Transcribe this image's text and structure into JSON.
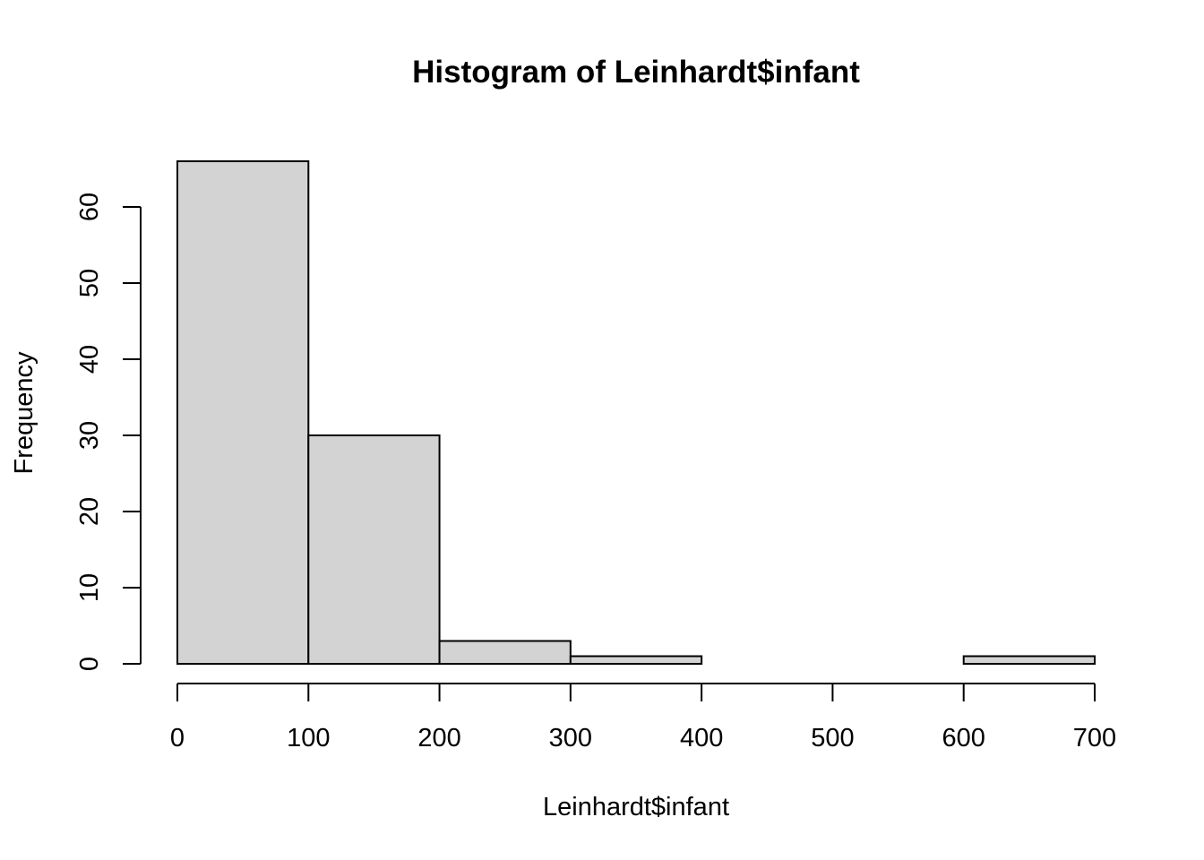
{
  "chart_data": {
    "type": "bar",
    "title": "Histogram of Leinhardt$infant",
    "xlabel": "Leinhardt$infant",
    "ylabel": "Frequency",
    "bins": [
      {
        "from": 0,
        "to": 100,
        "count": 66
      },
      {
        "from": 100,
        "to": 200,
        "count": 30
      },
      {
        "from": 200,
        "to": 300,
        "count": 3
      },
      {
        "from": 300,
        "to": 400,
        "count": 1
      },
      {
        "from": 400,
        "to": 500,
        "count": 0
      },
      {
        "from": 500,
        "to": 600,
        "count": 0
      },
      {
        "from": 600,
        "to": 700,
        "count": 1
      }
    ],
    "xlim": [
      0,
      700
    ],
    "ylim": [
      0,
      66
    ],
    "x_ticks": [
      0,
      100,
      200,
      300,
      400,
      500,
      600,
      700
    ],
    "y_ticks": [
      0,
      10,
      20,
      30,
      40,
      50,
      60
    ],
    "grid": false,
    "bar_color": "#d3d3d3"
  }
}
